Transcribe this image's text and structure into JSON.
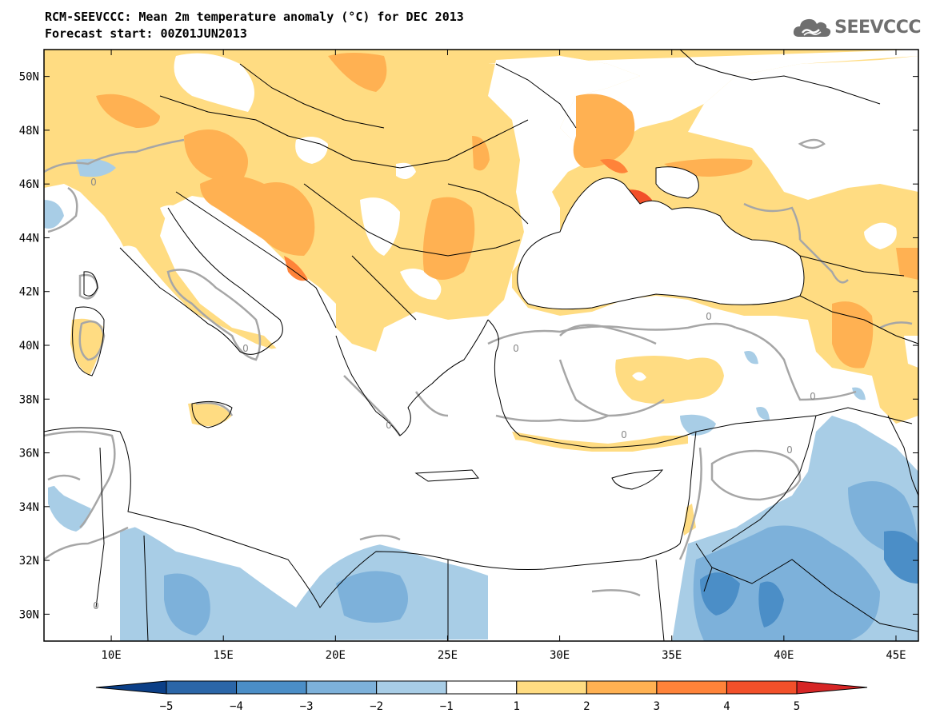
{
  "header": {
    "title_line1": "RCM-SEEVCCC: Mean 2m temperature anomaly (°C) for DEC 2013",
    "title_line2": "Forecast start: 00Z01JUN2013",
    "logo_text": "SEEVCCC"
  },
  "map": {
    "lon_range": [
      7,
      46
    ],
    "lat_range": [
      29,
      51
    ],
    "lat_labels": [
      {
        "value": 50,
        "text": "50N"
      },
      {
        "value": 48,
        "text": "48N"
      },
      {
        "value": 46,
        "text": "46N"
      },
      {
        "value": 44,
        "text": "44N"
      },
      {
        "value": 42,
        "text": "42N"
      },
      {
        "value": 40,
        "text": "40N"
      },
      {
        "value": 38,
        "text": "38N"
      },
      {
        "value": 36,
        "text": "36N"
      },
      {
        "value": 34,
        "text": "34N"
      },
      {
        "value": 32,
        "text": "32N"
      },
      {
        "value": 30,
        "text": "30N"
      }
    ],
    "lon_labels": [
      {
        "value": 10,
        "text": "10E"
      },
      {
        "value": 15,
        "text": "15E"
      },
      {
        "value": 20,
        "text": "20E"
      },
      {
        "value": 25,
        "text": "25E"
      },
      {
        "value": 30,
        "text": "30E"
      },
      {
        "value": 35,
        "text": "35E"
      },
      {
        "value": 40,
        "text": "40E"
      },
      {
        "value": 45,
        "text": "45E"
      }
    ],
    "zero_contour_label": "0"
  },
  "colorbar": {
    "labels": [
      "−5",
      "−4",
      "−3",
      "−2",
      "−1",
      "1",
      "2",
      "3",
      "4",
      "5"
    ],
    "colors": [
      "#0b3f87",
      "#2b66a8",
      "#4b8ec7",
      "#7db1da",
      "#a8cde6",
      "#ffffff",
      "#ffdc82",
      "#ffb152",
      "#ff8339",
      "#f2502a",
      "#d62525"
    ]
  }
}
